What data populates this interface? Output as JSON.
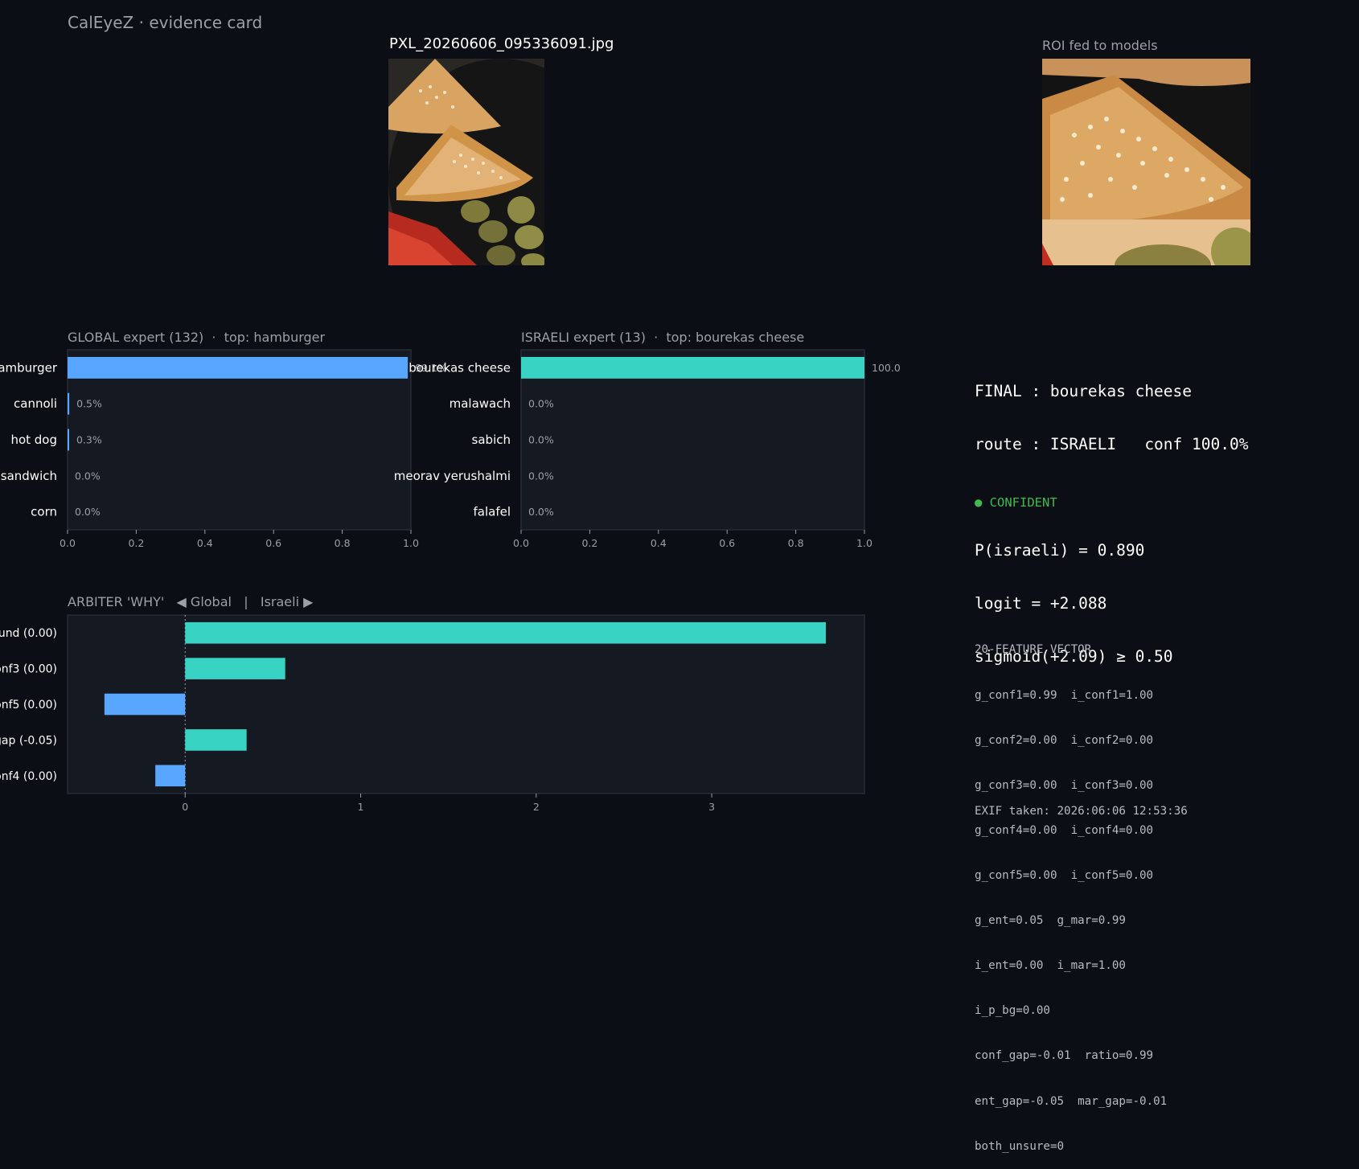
{
  "app": {
    "title": "CalEyeZ · evidence card"
  },
  "photo": {
    "filename": "PXL_20260606_095336091.jpg",
    "roi_title": "ROI fed to models"
  },
  "colors": {
    "global": "#58a6ff",
    "israeli": "#39d3c3",
    "confident": "#3fb950",
    "background": "#0b0e14",
    "panel": "#141922"
  },
  "chart_data": [
    {
      "type": "bar",
      "orientation": "horizontal",
      "title": "GLOBAL expert (132)  ·  top: hamburger",
      "categories": [
        "hamburger",
        "cannoli",
        "hot dog",
        "sandwich",
        "corn"
      ],
      "values": [
        0.991,
        0.005,
        0.003,
        0.0,
        0.0
      ],
      "value_labels": [
        "99.1%",
        "0.5%",
        "0.3%",
        "0.0%",
        "0.0%"
      ],
      "xlim": [
        0,
        1
      ],
      "xticks": [
        "0.0",
        "0.2",
        "0.4",
        "0.6",
        "0.8",
        "1.0"
      ],
      "color": "#58a6ff"
    },
    {
      "type": "bar",
      "orientation": "horizontal",
      "title": "ISRAELI expert (13)  ·  top: bourekas cheese",
      "categories": [
        "bourekas cheese",
        "malawach",
        "sabich",
        "meorav yerushalmi",
        "falafel"
      ],
      "values": [
        1.0,
        0.0,
        0.0,
        0.0,
        0.0
      ],
      "value_labels": [
        "100.0%",
        "0.0%",
        "0.0%",
        "0.0%",
        "0.0%"
      ],
      "xlim": [
        0,
        1
      ],
      "xticks": [
        "0.0",
        "0.2",
        "0.4",
        "0.6",
        "0.8",
        "1.0"
      ],
      "color": "#39d3c3"
    },
    {
      "type": "bar",
      "orientation": "horizontal",
      "title": "ARBITER 'WHY'   ◀ Global   |   Israeli ▶",
      "categories": [
        "ound (0.00)",
        "onf3 (0.00)",
        "onf5 (0.00)",
        "gap (-0.05)",
        "onf4 (0.00)"
      ],
      "values": [
        3.65,
        0.57,
        -0.46,
        0.35,
        -0.17
      ],
      "xlim": [
        -0.67,
        3.87
      ],
      "xticks": [
        0,
        1,
        2,
        3
      ],
      "positive_color": "#39d3c3",
      "negative_color": "#58a6ff"
    }
  ],
  "final": {
    "lines": [
      "FINAL : bourekas cheese",
      "route : ISRAELI   conf 100.0%",
      "",
      "P(israeli) = 0.890",
      "logit = +2.088",
      "sigmoid(+2.09) ≥ 0.50"
    ],
    "status": "● CONFIDENT"
  },
  "features": {
    "header": "20-FEATURE VECTOR",
    "lines": [
      "g_conf1=0.99  i_conf1=1.00",
      "g_conf2=0.00  i_conf2=0.00",
      "g_conf3=0.00  i_conf3=0.00",
      "g_conf4=0.00  i_conf4=0.00",
      "g_conf5=0.00  i_conf5=0.00",
      "g_ent=0.05  g_mar=0.99",
      "i_ent=0.00  i_mar=1.00",
      "i_p_bg=0.00",
      "conf_gap=-0.01  ratio=0.99",
      "ent_gap=-0.05  mar_gap=-0.01",
      "both_unsure=0"
    ]
  },
  "exif": {
    "taken": "EXIF taken: 2026:06:06 12:53:36"
  }
}
